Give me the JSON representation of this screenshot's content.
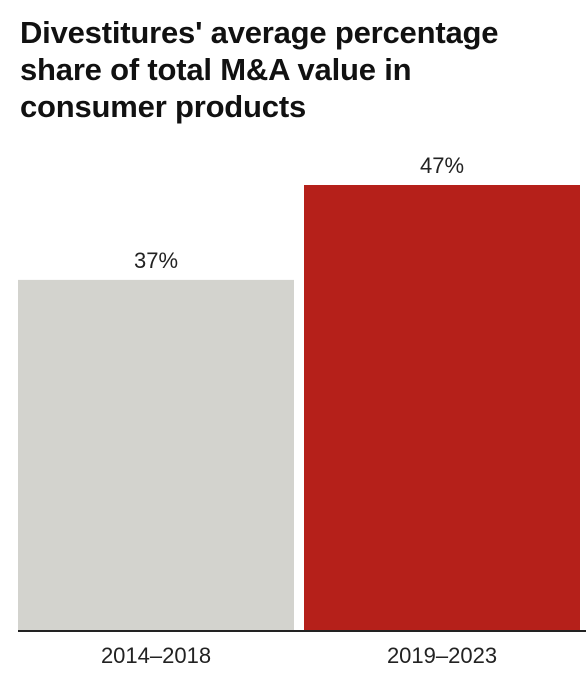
{
  "chart_data": {
    "type": "bar",
    "title": "Divestitures' average percentage share of total M&A value in consumer products",
    "categories": [
      "2014–2018",
      "2019–2023"
    ],
    "values": [
      37,
      47
    ],
    "value_labels": [
      "37%",
      "47%"
    ],
    "colors": [
      "#d3d3ce",
      "#b5201a"
    ],
    "ylim": [
      0,
      47
    ],
    "xlabel": "",
    "ylabel": "",
    "grid": false,
    "legend": "none"
  }
}
